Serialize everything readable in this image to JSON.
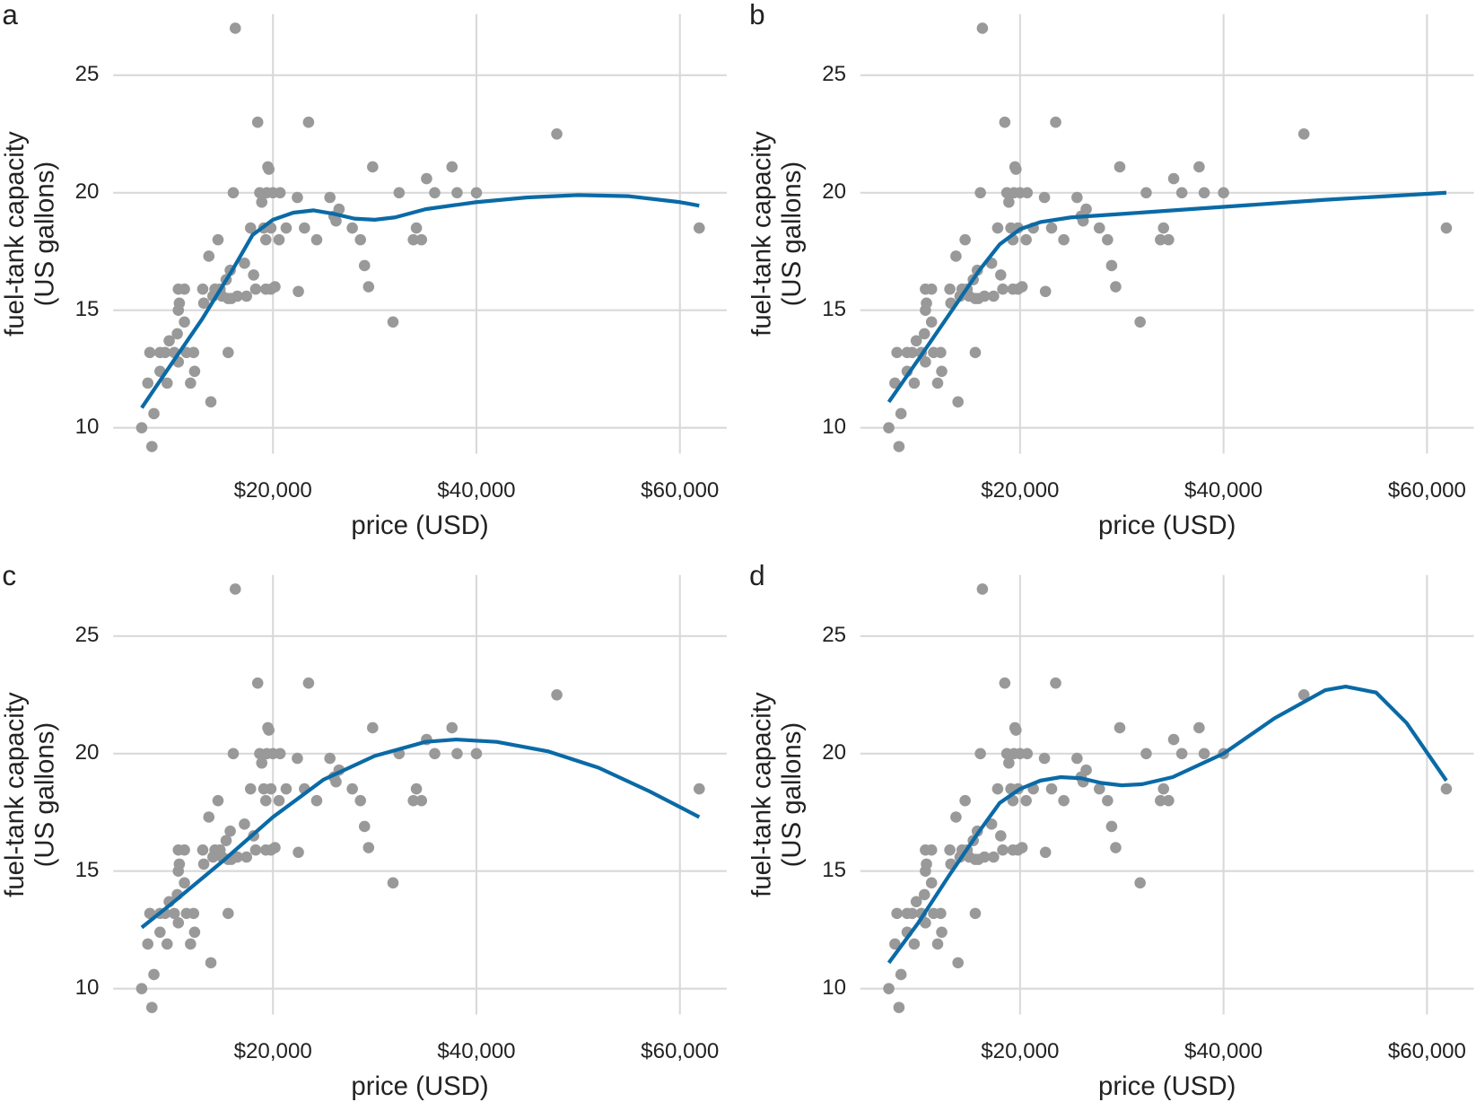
{
  "chart_data": [
    {
      "type": "scatter",
      "label": "a",
      "xlabel": "price (USD)",
      "ylabel": [
        "fuel-tank capacity",
        "(US gallons)"
      ],
      "xlim": [
        4300,
        64600
      ],
      "ylim": [
        8.9,
        27.6
      ],
      "xticks": [
        {
          "value": 20000,
          "label": "$20,000"
        },
        {
          "value": 40000,
          "label": "$40,000"
        },
        {
          "value": 60000,
          "label": "$60,000"
        }
      ],
      "yticks": [
        10,
        15,
        20,
        25
      ],
      "grid": true,
      "series": [
        {
          "type": "scatter",
          "color": "#999999",
          "x": [
            7100,
            8100,
            7700,
            7900,
            8300,
            8900,
            8900,
            9400,
            9600,
            9800,
            10300,
            10600,
            10700,
            10700,
            10800,
            10700,
            11300,
            11300,
            11500,
            11900,
            12200,
            12300,
            13100,
            13200,
            13700,
            13900,
            14100,
            14300,
            14600,
            14800,
            15000,
            15400,
            15600,
            15600,
            15800,
            15900,
            16100,
            16300,
            16500,
            17200,
            17400,
            17800,
            18100,
            18300,
            18500,
            18700,
            18900,
            19100,
            19300,
            19300,
            19400,
            19500,
            19600,
            19800,
            19800,
            20000,
            20200,
            20600,
            20700,
            21300,
            22400,
            22500,
            23100,
            23500,
            24300,
            25600,
            26000,
            26200,
            26500,
            27800,
            28600,
            29000,
            29400,
            29800,
            31800,
            32400,
            33800,
            34100,
            34600,
            35100,
            35900,
            37600,
            38100,
            40000,
            47900,
            61900
          ],
          "values": [
            10.0,
            9.2,
            11.9,
            13.2,
            10.6,
            13.2,
            12.4,
            13.2,
            11.9,
            13.7,
            13.2,
            14.0,
            15.0,
            12.8,
            15.3,
            15.9,
            15.9,
            14.5,
            13.2,
            11.9,
            13.2,
            12.4,
            15.9,
            15.3,
            17.3,
            11.1,
            15.6,
            15.9,
            18.0,
            15.9,
            15.6,
            16.3,
            13.2,
            15.5,
            16.7,
            15.5,
            20.0,
            27.0,
            15.6,
            17.0,
            15.6,
            18.5,
            16.5,
            15.9,
            23.0,
            20.0,
            19.6,
            18.5,
            18.0,
            15.9,
            20.0,
            21.1,
            21.0,
            18.5,
            15.9,
            20.0,
            16.0,
            18.0,
            20.0,
            18.5,
            19.8,
            15.8,
            18.5,
            23.0,
            18.0,
            19.8,
            19.0,
            18.8,
            19.3,
            18.5,
            18.0,
            16.9,
            16.0,
            21.1,
            14.5,
            20.0,
            18.0,
            18.5,
            18.0,
            20.6,
            20.0,
            21.1,
            20.0,
            20.0,
            22.5,
            18.5
          ]
        },
        {
          "type": "line",
          "color": "#0a6aa6",
          "x": [
            7100,
            10000,
            13000,
            16000,
            18000,
            20000,
            22000,
            24000,
            26000,
            28000,
            30000,
            32000,
            35000,
            40000,
            45000,
            50000,
            55000,
            60000,
            61900
          ],
          "values": [
            10.85,
            12.7,
            14.6,
            16.7,
            18.2,
            18.85,
            19.15,
            19.25,
            19.1,
            18.9,
            18.85,
            18.95,
            19.3,
            19.6,
            19.8,
            19.9,
            19.85,
            19.6,
            19.45
          ]
        }
      ]
    },
    {
      "type": "scatter",
      "label": "b",
      "xlabel": "price (USD)",
      "ylabel": [
        "fuel-tank capacity",
        "(US gallons)"
      ],
      "xlim": [
        4300,
        64600
      ],
      "ylim": [
        8.9,
        27.6
      ],
      "xticks": [
        {
          "value": 20000,
          "label": "$20,000"
        },
        {
          "value": 40000,
          "label": "$40,000"
        },
        {
          "value": 60000,
          "label": "$60,000"
        }
      ],
      "yticks": [
        10,
        15,
        20,
        25
      ],
      "grid": true,
      "series": [
        {
          "type": "scatter",
          "color": "#999999",
          "x": [
            7100,
            8100,
            7700,
            7900,
            8300,
            8900,
            8900,
            9400,
            9600,
            9800,
            10300,
            10600,
            10700,
            10700,
            10800,
            10700,
            11300,
            11300,
            11500,
            11900,
            12200,
            12300,
            13100,
            13200,
            13700,
            13900,
            14100,
            14300,
            14600,
            14800,
            15000,
            15400,
            15600,
            15600,
            15800,
            15900,
            16100,
            16300,
            16500,
            17200,
            17400,
            17800,
            18100,
            18300,
            18500,
            18700,
            18900,
            19100,
            19300,
            19300,
            19400,
            19500,
            19600,
            19800,
            19800,
            20000,
            20200,
            20600,
            20700,
            21300,
            22400,
            22500,
            23100,
            23500,
            24300,
            25600,
            26000,
            26200,
            26500,
            27800,
            28600,
            29000,
            29400,
            29800,
            31800,
            32400,
            33800,
            34100,
            34600,
            35100,
            35900,
            37600,
            38100,
            40000,
            47900,
            61900
          ],
          "values": [
            10.0,
            9.2,
            11.9,
            13.2,
            10.6,
            13.2,
            12.4,
            13.2,
            11.9,
            13.7,
            13.2,
            14.0,
            15.0,
            12.8,
            15.3,
            15.9,
            15.9,
            14.5,
            13.2,
            11.9,
            13.2,
            12.4,
            15.9,
            15.3,
            17.3,
            11.1,
            15.6,
            15.9,
            18.0,
            15.9,
            15.6,
            16.3,
            13.2,
            15.5,
            16.7,
            15.5,
            20.0,
            27.0,
            15.6,
            17.0,
            15.6,
            18.5,
            16.5,
            15.9,
            23.0,
            20.0,
            19.6,
            18.5,
            18.0,
            15.9,
            20.0,
            21.1,
            21.0,
            18.5,
            15.9,
            20.0,
            16.0,
            18.0,
            20.0,
            18.5,
            19.8,
            15.8,
            18.5,
            23.0,
            18.0,
            19.8,
            19.0,
            18.8,
            19.3,
            18.5,
            18.0,
            16.9,
            16.0,
            21.1,
            14.5,
            20.0,
            18.0,
            18.5,
            18.0,
            20.6,
            20.0,
            21.1,
            20.0,
            20.0,
            22.5,
            18.5
          ]
        },
        {
          "type": "line",
          "color": "#0a6aa6",
          "x": [
            7100,
            10000,
            13000,
            16000,
            18000,
            20000,
            22000,
            25000,
            30000,
            40000,
            50000,
            61900
          ],
          "values": [
            11.1,
            12.9,
            14.8,
            16.7,
            17.8,
            18.45,
            18.75,
            18.95,
            19.1,
            19.4,
            19.7,
            20.0
          ]
        }
      ]
    },
    {
      "type": "scatter",
      "label": "c",
      "xlabel": "price (USD)",
      "ylabel": [
        "fuel-tank capacity",
        "(US gallons)"
      ],
      "xlim": [
        4300,
        64600
      ],
      "ylim": [
        8.9,
        27.6
      ],
      "xticks": [
        {
          "value": 20000,
          "label": "$20,000"
        },
        {
          "value": 40000,
          "label": "$40,000"
        },
        {
          "value": 60000,
          "label": "$60,000"
        }
      ],
      "yticks": [
        10,
        15,
        20,
        25
      ],
      "grid": true,
      "series": [
        {
          "type": "scatter",
          "color": "#999999",
          "x": [
            7100,
            8100,
            7700,
            7900,
            8300,
            8900,
            8900,
            9400,
            9600,
            9800,
            10300,
            10600,
            10700,
            10700,
            10800,
            10700,
            11300,
            11300,
            11500,
            11900,
            12200,
            12300,
            13100,
            13200,
            13700,
            13900,
            14100,
            14300,
            14600,
            14800,
            15000,
            15400,
            15600,
            15600,
            15800,
            15900,
            16100,
            16300,
            16500,
            17200,
            17400,
            17800,
            18100,
            18300,
            18500,
            18700,
            18900,
            19100,
            19300,
            19300,
            19400,
            19500,
            19600,
            19800,
            19800,
            20000,
            20200,
            20600,
            20700,
            21300,
            22400,
            22500,
            23100,
            23500,
            24300,
            25600,
            26000,
            26200,
            26500,
            27800,
            28600,
            29000,
            29400,
            29800,
            31800,
            32400,
            33800,
            34100,
            34600,
            35100,
            35900,
            37600,
            38100,
            40000,
            47900,
            61900
          ],
          "values": [
            10.0,
            9.2,
            11.9,
            13.2,
            10.6,
            13.2,
            12.4,
            13.2,
            11.9,
            13.7,
            13.2,
            14.0,
            15.0,
            12.8,
            15.3,
            15.9,
            15.9,
            14.5,
            13.2,
            11.9,
            13.2,
            12.4,
            15.9,
            15.3,
            17.3,
            11.1,
            15.6,
            15.9,
            18.0,
            15.9,
            15.6,
            16.3,
            13.2,
            15.5,
            16.7,
            15.5,
            20.0,
            27.0,
            15.6,
            17.0,
            15.6,
            18.5,
            16.5,
            15.9,
            23.0,
            20.0,
            19.6,
            18.5,
            18.0,
            15.9,
            20.0,
            21.1,
            21.0,
            18.5,
            15.9,
            20.0,
            16.0,
            18.0,
            20.0,
            18.5,
            19.8,
            15.8,
            18.5,
            23.0,
            18.0,
            19.8,
            19.0,
            18.8,
            19.3,
            18.5,
            18.0,
            16.9,
            16.0,
            21.1,
            14.5,
            20.0,
            18.0,
            18.5,
            18.0,
            20.6,
            20.0,
            21.1,
            20.0,
            20.0,
            22.5,
            18.5
          ]
        },
        {
          "type": "line",
          "color": "#0a6aa6",
          "x": [
            7100,
            10000,
            15000,
            20000,
            25000,
            30000,
            35000,
            38000,
            42000,
            47000,
            52000,
            57000,
            61900
          ],
          "values": [
            12.6,
            13.6,
            15.4,
            17.3,
            18.9,
            19.9,
            20.5,
            20.6,
            20.5,
            20.1,
            19.4,
            18.4,
            17.3
          ]
        }
      ]
    },
    {
      "type": "scatter",
      "label": "d",
      "xlabel": "price (USD)",
      "ylabel": [
        "fuel-tank capacity",
        "(US gallons)"
      ],
      "xlim": [
        4300,
        64600
      ],
      "ylim": [
        8.9,
        27.6
      ],
      "xticks": [
        {
          "value": 20000,
          "label": "$20,000"
        },
        {
          "value": 40000,
          "label": "$40,000"
        },
        {
          "value": 60000,
          "label": "$60,000"
        }
      ],
      "yticks": [
        10,
        15,
        20,
        25
      ],
      "grid": true,
      "series": [
        {
          "type": "scatter",
          "color": "#999999",
          "x": [
            7100,
            8100,
            7700,
            7900,
            8300,
            8900,
            8900,
            9400,
            9600,
            9800,
            10300,
            10600,
            10700,
            10700,
            10800,
            10700,
            11300,
            11300,
            11500,
            11900,
            12200,
            12300,
            13100,
            13200,
            13700,
            13900,
            14100,
            14300,
            14600,
            14800,
            15000,
            15400,
            15600,
            15600,
            15800,
            15900,
            16100,
            16300,
            16500,
            17200,
            17400,
            17800,
            18100,
            18300,
            18500,
            18700,
            18900,
            19100,
            19300,
            19300,
            19400,
            19500,
            19600,
            19800,
            19800,
            20000,
            20200,
            20600,
            20700,
            21300,
            22400,
            22500,
            23100,
            23500,
            24300,
            25600,
            26000,
            26200,
            26500,
            27800,
            28600,
            29000,
            29400,
            29800,
            31800,
            32400,
            33800,
            34100,
            34600,
            35100,
            35900,
            37600,
            38100,
            40000,
            47900,
            61900
          ],
          "values": [
            10.0,
            9.2,
            11.9,
            13.2,
            10.6,
            13.2,
            12.4,
            13.2,
            11.9,
            13.7,
            13.2,
            14.0,
            15.0,
            12.8,
            15.3,
            15.9,
            15.9,
            14.5,
            13.2,
            11.9,
            13.2,
            12.4,
            15.9,
            15.3,
            17.3,
            11.1,
            15.6,
            15.9,
            18.0,
            15.9,
            15.6,
            16.3,
            13.2,
            15.5,
            16.7,
            15.5,
            20.0,
            27.0,
            15.6,
            17.0,
            15.6,
            18.5,
            16.5,
            15.9,
            23.0,
            20.0,
            19.6,
            18.5,
            18.0,
            15.9,
            20.0,
            21.1,
            21.0,
            18.5,
            15.9,
            20.0,
            16.0,
            18.0,
            20.0,
            18.5,
            19.8,
            15.8,
            18.5,
            23.0,
            18.0,
            19.8,
            19.0,
            18.8,
            19.3,
            18.5,
            18.0,
            16.9,
            16.0,
            21.1,
            14.5,
            20.0,
            18.0,
            18.5,
            18.0,
            20.6,
            20.0,
            21.1,
            20.0,
            20.0,
            22.5,
            18.5
          ]
        },
        {
          "type": "line",
          "color": "#0a6aa6",
          "x": [
            7100,
            10000,
            13000,
            16000,
            18000,
            20000,
            22000,
            24000,
            26000,
            28000,
            30000,
            32000,
            35000,
            40000,
            45000,
            50000,
            52000,
            55000,
            58000,
            61900
          ],
          "values": [
            11.1,
            12.8,
            14.8,
            16.7,
            17.9,
            18.5,
            18.85,
            19.0,
            18.95,
            18.75,
            18.65,
            18.7,
            19.0,
            20.0,
            21.5,
            22.7,
            22.85,
            22.6,
            21.3,
            18.85
          ]
        }
      ]
    }
  ]
}
